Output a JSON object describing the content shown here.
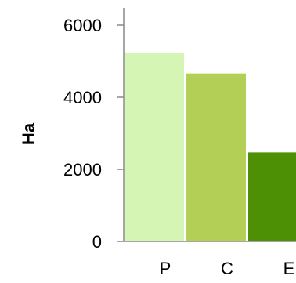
{
  "chart_data": {
    "type": "bar",
    "title": "",
    "xlabel": "",
    "ylabel": "Ha",
    "categories": [
      "P",
      "C",
      "E"
    ],
    "values": [
      5230,
      4660,
      2470
    ],
    "ylim": [
      0,
      6000
    ],
    "yticks": [
      0,
      2000,
      4000,
      6000
    ],
    "grid": false,
    "legend": "none",
    "colors": [
      "#d5f5b5",
      "#b3cf56",
      "#4e9005"
    ]
  }
}
